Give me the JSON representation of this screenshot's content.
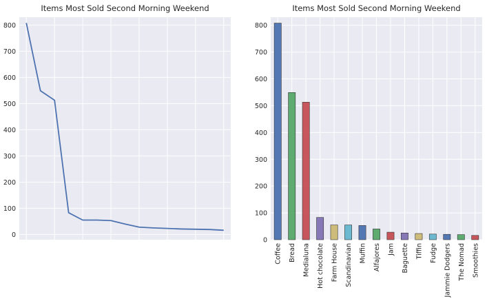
{
  "chart_data": [
    {
      "type": "line",
      "title": "Items Most Sold Second Morning Weekend",
      "xlabel": "",
      "ylabel": "",
      "ylim": [
        -20,
        830
      ],
      "yticks": [
        0,
        100,
        200,
        300,
        400,
        500,
        600,
        700,
        800
      ],
      "grid": true,
      "x_tick_labels_visible": false,
      "colors": {
        "line": "#4c72b0",
        "background": "#eaeaf2",
        "grid": "#ffffff"
      },
      "x": [
        0,
        1,
        2,
        3,
        4,
        5,
        6,
        7,
        8,
        9,
        10,
        11,
        12,
        13,
        14
      ],
      "values": [
        808,
        549,
        513,
        83,
        55,
        55,
        53,
        40,
        28,
        25,
        23,
        21,
        20,
        19,
        16
      ]
    },
    {
      "type": "bar",
      "title": "Items Most Sold Second Morning Weekend",
      "xlabel": "",
      "ylabel": "",
      "ylim": [
        0,
        830
      ],
      "yticks": [
        0,
        100,
        200,
        300,
        400,
        500,
        600,
        700,
        800
      ],
      "grid": true,
      "categories": [
        "Coffee",
        "Bread",
        "Medialuna",
        "Hot chocolate",
        "Farm House",
        "Scandinavian",
        "Muffin",
        "Alfajores",
        "Jam",
        "Baguette",
        "Tiffin",
        "Fudge",
        "Jammie Dodgers",
        "The Nomad",
        "Smoothies"
      ],
      "values": [
        808,
        549,
        513,
        83,
        55,
        55,
        53,
        40,
        28,
        25,
        23,
        21,
        20,
        19,
        16
      ],
      "colors": {
        "bars": [
          "#4c72b0",
          "#55a868",
          "#c44e52",
          "#8172b2",
          "#ccb974",
          "#64b5cd"
        ],
        "background": "#eaeaf2",
        "grid": "#ffffff",
        "edge": "#333333"
      }
    }
  ]
}
